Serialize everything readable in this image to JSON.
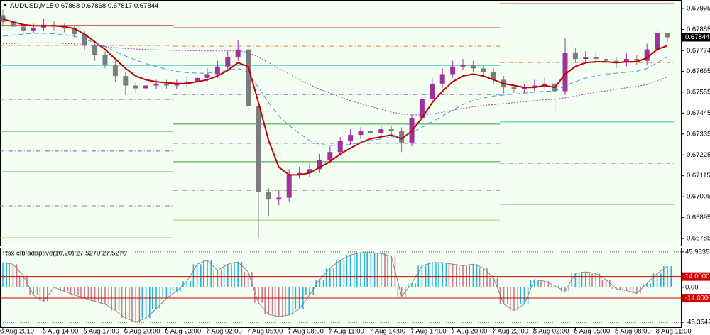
{
  "chart_data": [
    {
      "type": "candlestick",
      "title": "AUDUSD,M15",
      "categories": [
        "6 Aug 2019",
        null,
        null,
        null,
        "6 Aug 14:00",
        null,
        null,
        null,
        "6 Aug 17:00",
        null,
        null,
        null,
        "6 Aug 20:00",
        null,
        null,
        null,
        "6 Aug 23:00",
        null,
        null,
        null,
        "7 Aug 02:00",
        null,
        null,
        null,
        "7 Aug 05:00",
        null,
        null,
        null,
        "7 Aug 08:00",
        null,
        null,
        null,
        "7 Aug 11:00",
        null,
        null,
        null,
        "7 Aug 14:00",
        null,
        null,
        null,
        "7 Aug 17:00",
        null,
        null,
        null,
        "7 Aug 20:00",
        null,
        null,
        null,
        "7 Aug 23:00",
        null,
        null,
        null,
        "8 Aug 02:00",
        null,
        null,
        null,
        "8 Aug 05:00",
        null,
        null,
        null,
        "8 Aug 08:00",
        null,
        null,
        null,
        "8 Aug 11:00",
        null
      ],
      "open": [
        0.6796,
        0.67925,
        0.679,
        0.6788,
        0.67895,
        0.6791,
        0.679,
        0.6789,
        0.6786,
        0.678,
        0.6775,
        0.677,
        0.6764,
        0.6759,
        0.67575,
        0.6759,
        0.676,
        0.6759,
        0.676,
        0.6761,
        0.6763,
        0.6765,
        0.6769,
        0.6774,
        0.6778,
        0.6748,
        0.6703,
        0.6699,
        0.67,
        0.6712,
        0.6713,
        0.6715,
        0.672,
        0.6724,
        0.673,
        0.6733,
        0.6735,
        0.6734,
        0.6736,
        0.6735,
        0.6729,
        0.6742,
        0.6752,
        0.676,
        0.6765,
        0.6769,
        0.677,
        0.6768,
        0.6766,
        0.6762,
        0.6758,
        0.6757,
        0.6758,
        0.6759,
        0.676,
        0.6756,
        0.6776,
        0.6773,
        0.6774,
        0.6773,
        0.6772,
        0.6771,
        0.6773,
        0.6772,
        0.6778,
        0.67868
      ],
      "high": [
        0.6799,
        0.67945,
        0.6792,
        0.67915,
        0.6794,
        0.6793,
        0.67915,
        0.67905,
        0.6788,
        0.6782,
        0.6777,
        0.6772,
        0.6766,
        0.6761,
        0.6761,
        0.6762,
        0.6762,
        0.6762,
        0.6764,
        0.6765,
        0.6768,
        0.6772,
        0.6777,
        0.6783,
        0.6781,
        0.675,
        0.6705,
        0.6704,
        0.6715,
        0.6716,
        0.6718,
        0.6723,
        0.6727,
        0.6732,
        0.6736,
        0.6737,
        0.6737,
        0.6738,
        0.6738,
        0.6737,
        0.6744,
        0.6755,
        0.6763,
        0.6768,
        0.6772,
        0.6773,
        0.6772,
        0.677,
        0.6768,
        0.6764,
        0.676,
        0.676,
        0.6762,
        0.6763,
        0.6762,
        0.6784,
        0.6779,
        0.6777,
        0.6776,
        0.6775,
        0.6774,
        0.6776,
        0.6775,
        0.6781,
        0.6789,
        0.67868
      ],
      "low": [
        0.679,
        0.6788,
        0.6786,
        0.67865,
        0.6788,
        0.6788,
        0.6787,
        0.6784,
        0.6778,
        0.6772,
        0.6768,
        0.6761,
        0.6754,
        0.6755,
        0.6756,
        0.6757,
        0.6757,
        0.6757,
        0.6758,
        0.6759,
        0.6761,
        0.6763,
        0.6767,
        0.6772,
        0.6744,
        0.6679,
        0.669,
        0.6696,
        0.6698,
        0.671,
        0.6711,
        0.6713,
        0.6718,
        0.6722,
        0.6728,
        0.6731,
        0.6732,
        0.6732,
        0.6732,
        0.6724,
        0.6727,
        0.674,
        0.675,
        0.6758,
        0.6763,
        0.6767,
        0.6766,
        0.6764,
        0.676,
        0.6755,
        0.6755,
        0.6755,
        0.6756,
        0.6757,
        0.6745,
        0.6754,
        0.6771,
        0.6771,
        0.6771,
        0.677,
        0.6768,
        0.6769,
        0.677,
        0.677,
        0.6776,
        0.67817
      ],
      "close": [
        0.67925,
        0.679,
        0.6788,
        0.67895,
        0.6791,
        0.679,
        0.6789,
        0.6786,
        0.678,
        0.6775,
        0.677,
        0.6764,
        0.6759,
        0.67575,
        0.6759,
        0.676,
        0.6759,
        0.676,
        0.6761,
        0.6763,
        0.6765,
        0.6769,
        0.6774,
        0.6778,
        0.6748,
        0.6703,
        0.6699,
        0.67,
        0.6712,
        0.6713,
        0.6715,
        0.672,
        0.6724,
        0.673,
        0.6733,
        0.6735,
        0.6734,
        0.6736,
        0.6735,
        0.6729,
        0.6742,
        0.6752,
        0.676,
        0.6765,
        0.6769,
        0.677,
        0.6768,
        0.6766,
        0.6762,
        0.6758,
        0.6757,
        0.6758,
        0.6759,
        0.676,
        0.6756,
        0.6776,
        0.6773,
        0.6774,
        0.6773,
        0.6772,
        0.6771,
        0.6773,
        0.6772,
        0.6778,
        0.67868,
        0.67844
      ],
      "up_color": "#a0309a",
      "down_color": "#7c7c7c",
      "series": [
        {
          "color": "#c00000",
          "values": [
            0.6794,
            0.67925,
            0.6791,
            0.67905,
            0.67905,
            0.67905,
            0.679,
            0.6789,
            0.6786,
            0.6782,
            0.6778,
            0.6773,
            0.6768,
            0.6764,
            0.6762,
            0.6761,
            0.67605,
            0.676,
            0.676,
            0.6761,
            0.6762,
            0.6764,
            0.6767,
            0.6771,
            0.6769,
            0.675,
            0.673,
            0.6716,
            0.6712,
            0.6712,
            0.6713,
            0.6716,
            0.6719,
            0.6723,
            0.6726,
            0.6729,
            0.6731,
            0.6732,
            0.6733,
            0.6731,
            0.6735,
            0.6742,
            0.675,
            0.6756,
            0.6761,
            0.6764,
            0.6765,
            0.6764,
            0.6762,
            0.676,
            0.6759,
            0.6758,
            0.6758,
            0.6759,
            0.6758,
            0.6765,
            0.6769,
            0.6771,
            0.67715,
            0.67715,
            0.6771,
            0.67715,
            0.67715,
            0.67735,
            0.6778,
            0.678
          ]
        },
        {
          "color": "#4a90d9",
          "dash": true,
          "values": [
            0.6785,
            0.67855,
            0.6786,
            0.67865,
            0.67865,
            0.67862,
            0.67858,
            0.6785,
            0.67835,
            0.67815,
            0.67795,
            0.6777,
            0.67745,
            0.67725,
            0.67705,
            0.6769,
            0.67675,
            0.67665,
            0.67658,
            0.67655,
            0.67655,
            0.6766,
            0.6767,
            0.6768,
            0.6766,
            0.6758,
            0.675,
            0.6743,
            0.6738,
            0.6734,
            0.673,
            0.6728,
            0.67275,
            0.67275,
            0.6728,
            0.6729,
            0.673,
            0.6731,
            0.6732,
            0.6732,
            0.6734,
            0.6737,
            0.674,
            0.6743,
            0.6746,
            0.6749,
            0.6751,
            0.67525,
            0.67535,
            0.6754,
            0.67545,
            0.6755,
            0.67555,
            0.6756,
            0.6756,
            0.6759,
            0.6761,
            0.6763,
            0.6764,
            0.6765,
            0.67655,
            0.6766,
            0.67665,
            0.6768,
            0.6771,
            0.6774
          ]
        },
        {
          "color": "#a040a0",
          "dot": true,
          "values": [
            0.6781,
            0.67812,
            0.67814,
            0.67815,
            0.67815,
            0.67814,
            0.67812,
            0.6781,
            0.67805,
            0.678,
            0.67795,
            0.6779,
            0.67785,
            0.67782,
            0.6778,
            0.67778,
            0.67776,
            0.67775,
            0.67774,
            0.67773,
            0.67772,
            0.67772,
            0.67772,
            0.67773,
            0.67765,
            0.6774,
            0.6771,
            0.6768,
            0.6765,
            0.6762,
            0.67595,
            0.6757,
            0.6755,
            0.6753,
            0.6751,
            0.67495,
            0.6748,
            0.67465,
            0.6745,
            0.6744,
            0.67435,
            0.67435,
            0.6744,
            0.6745,
            0.6746,
            0.6747,
            0.67478,
            0.67485,
            0.6749,
            0.67495,
            0.675,
            0.67505,
            0.6751,
            0.67515,
            0.67518,
            0.67525,
            0.67535,
            0.67545,
            0.67555,
            0.67562,
            0.6757,
            0.67578,
            0.67585,
            0.67595,
            0.67615,
            0.67635
          ]
        }
      ],
      "levels": [
        {
          "value": 0.67906,
          "color": "#c00000",
          "from": 0,
          "to": 17
        },
        {
          "value": 0.67801,
          "color": "#e08040",
          "dash": true,
          "from": 0,
          "to": 17
        },
        {
          "value": 0.67696,
          "color": "#30c0c0",
          "from": 0,
          "to": 17
        },
        {
          "value": 0.67517,
          "color": "#6060c0",
          "dash": true,
          "from": 0,
          "to": 17
        },
        {
          "value": 0.67349,
          "color": "#30a030",
          "from": 0,
          "to": 17
        },
        {
          "value": 0.67245,
          "color": "#6060c0",
          "dash": true,
          "from": 0,
          "to": 17
        },
        {
          "value": 0.67136,
          "color": "#30a030",
          "from": 0,
          "to": 17
        },
        {
          "value": 0.66957,
          "color": "#808080",
          "dash": true,
          "from": 0,
          "to": 17
        },
        {
          "value": 0.66789,
          "color": "#a0d060",
          "from": 0,
          "to": 17
        },
        {
          "value": 0.67894,
          "color": "#c00000",
          "from": 17,
          "to": 49
        },
        {
          "value": 0.67797,
          "color": "#e08040",
          "dash": true,
          "from": 17,
          "to": 49
        },
        {
          "value": 0.67696,
          "color": "#30c0c0",
          "from": 17,
          "to": 49
        },
        {
          "value": 0.67543,
          "color": "#6060c0",
          "dash": true,
          "from": 17,
          "to": 49
        },
        {
          "value": 0.67387,
          "color": "#30a030",
          "from": 17,
          "to": 49
        },
        {
          "value": 0.67286,
          "color": "#6060c0",
          "dash": true,
          "from": 17,
          "to": 49
        },
        {
          "value": 0.67189,
          "color": "#30a030",
          "from": 17,
          "to": 49
        },
        {
          "value": 0.67039,
          "color": "#808080",
          "dash": true,
          "from": 17,
          "to": 49
        },
        {
          "value": 0.66882,
          "color": "#a0d060",
          "from": 17,
          "to": 49
        },
        {
          "value": 0.68021,
          "color": "#c00000",
          "from": 49,
          "to": 66
        },
        {
          "value": 0.67711,
          "color": "#e08040",
          "dash": true,
          "from": 49,
          "to": 66
        },
        {
          "value": 0.67398,
          "color": "#30c0c0",
          "from": 49,
          "to": 66
        },
        {
          "value": 0.67181,
          "color": "#6060c0",
          "dash": true,
          "from": 49,
          "to": 66
        },
        {
          "value": 0.66965,
          "color": "#30a030",
          "from": 49,
          "to": 66
        }
      ],
      "ylim": [
        0.66748,
        0.6804
      ],
      "yticks": [
        0.67995,
        0.67885,
        0.67774,
        0.67665,
        0.67555,
        0.67445,
        0.67335,
        0.67225,
        0.67115,
        0.67005,
        0.66895,
        0.66785
      ]
    },
    {
      "type": "bar",
      "title": "Rsx cfb adaptive(10,20) 27.5270 27.5270",
      "values": [
        32,
        30,
        15,
        -10,
        -18,
        0,
        -5,
        -10,
        -14,
        -18,
        -22,
        -30,
        -40,
        -45,
        -40,
        -28,
        -14,
        -5,
        8,
        30,
        35,
        22,
        30,
        33,
        20,
        -20,
        -35,
        -38,
        -36,
        -28,
        -10,
        10,
        25,
        35,
        42,
        45,
        45,
        44,
        40,
        -12,
        5,
        28,
        32,
        32,
        30,
        28,
        30,
        25,
        12,
        -22,
        -30,
        -22,
        10,
        8,
        2,
        -5,
        18,
        20,
        18,
        10,
        -2,
        -4,
        -8,
        5,
        18,
        27.527
      ],
      "up_color": "#30b0d8",
      "down_color": "#d07890",
      "levels": [
        14,
        -14
      ],
      "level_color": "#d00000",
      "ylim": [
        -51.7,
        50.5
      ],
      "yticks": [
        45.9835,
        {
          "value": 14,
          "label": "14.0000"
        },
        {
          "value": 0,
          "label": "0.00"
        },
        {
          "value": -14,
          "label": "-14.0000"
        },
        -45.3542
      ]
    }
  ]
}
